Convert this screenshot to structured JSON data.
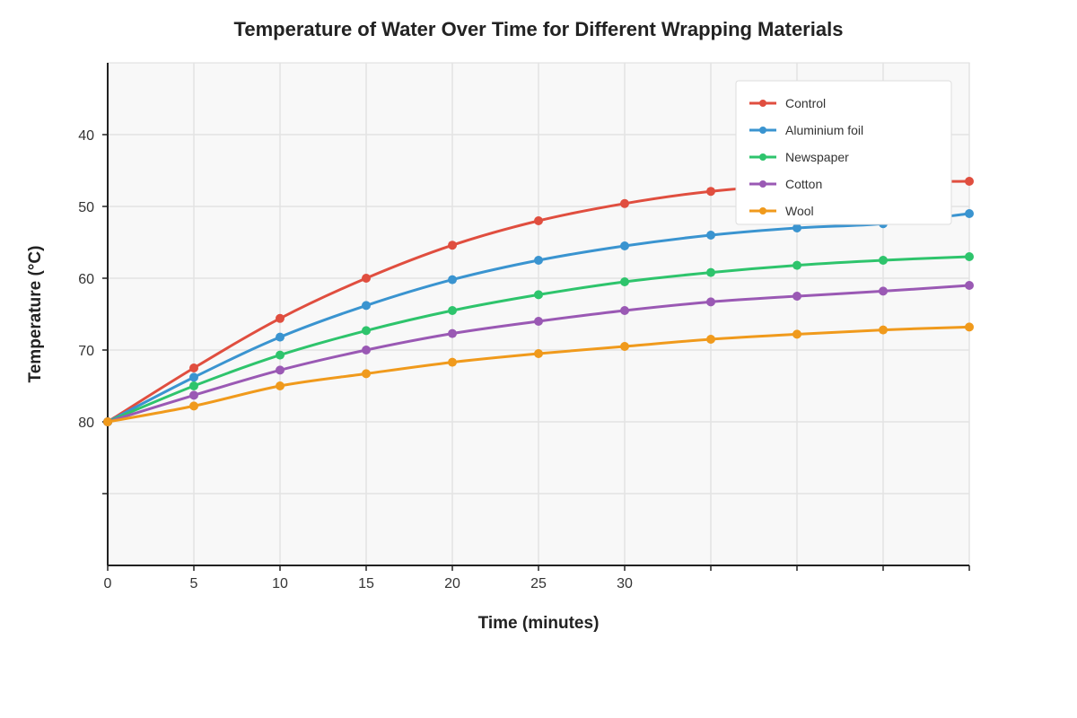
{
  "chart_data": {
    "type": "line",
    "title": "Temperature of Water Over Time for Different Wrapping Materials",
    "xlabel": "Time (minutes)",
    "ylabel": "Temperature (°C)",
    "xlim": [
      0,
      50
    ],
    "ylim": [
      30,
      100
    ],
    "y_inverted": true,
    "x_ticks": [
      0,
      5,
      10,
      15,
      20,
      25,
      30,
      35,
      40,
      45,
      50
    ],
    "x_tick_labels": [
      "0",
      "5",
      "10",
      "15",
      "20",
      "25",
      "30",
      "",
      "",
      "",
      ""
    ],
    "y_ticks": [
      40,
      50,
      60,
      70,
      80,
      90
    ],
    "y_tick_labels": [
      "40",
      "50",
      "60",
      "70",
      "80",
      ""
    ],
    "grid": true,
    "legend_position": "top-right",
    "x": [
      0,
      5,
      10,
      15,
      20,
      25,
      30,
      35,
      40,
      45,
      50
    ],
    "series": [
      {
        "name": "Control",
        "color": "#e04e3f",
        "values": [
          80,
          72.5,
          65.6,
          60,
          55.4,
          52.0,
          49.6,
          47.9,
          47.0,
          46.6,
          46.5
        ]
      },
      {
        "name": "Aluminium foil",
        "color": "#3a94d0",
        "values": [
          80,
          73.8,
          68.2,
          63.8,
          60.2,
          57.5,
          55.5,
          54.0,
          53.0,
          52.4,
          51.0
        ]
      },
      {
        "name": "Newspaper",
        "color": "#2ec46c",
        "values": [
          80,
          75.0,
          70.7,
          67.3,
          64.5,
          62.3,
          60.5,
          59.2,
          58.2,
          57.5,
          57.0
        ]
      },
      {
        "name": "Cotton",
        "color": "#9a59b4",
        "values": [
          80,
          76.3,
          72.8,
          70.0,
          67.7,
          66.0,
          64.5,
          63.3,
          62.5,
          61.8,
          61.0
        ]
      },
      {
        "name": "Wool",
        "color": "#f09a1c",
        "values": [
          80,
          77.8,
          75.0,
          73.3,
          71.7,
          70.5,
          69.5,
          68.5,
          67.8,
          67.2,
          66.8
        ]
      }
    ]
  }
}
